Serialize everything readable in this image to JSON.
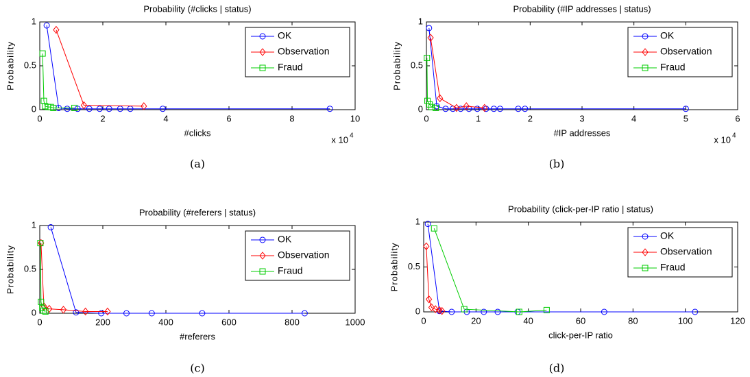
{
  "chart_data": [
    {
      "type": "line",
      "title": "Probability (#clicks | status)",
      "x_label": "#clicks",
      "y_label": "Probability",
      "x_multiplier": "x 10",
      "x_multiplier_exponent": "4",
      "caption": "(a)",
      "xlim": [
        0,
        10
      ],
      "xticks": [
        0,
        2,
        4,
        6,
        8,
        10
      ],
      "ylim": [
        0,
        1
      ],
      "yticks": [
        0,
        0.5,
        1
      ],
      "legend": "upper right",
      "series": [
        {
          "name": "OK",
          "color": "#0000ff",
          "marker": "circle",
          "x": [
            0.22,
            0.6,
            0.87,
            1.2,
            1.57,
            1.9,
            2.2,
            2.55,
            2.87,
            3.9,
            9.2
          ],
          "values": [
            0.96,
            0.02,
            0.01,
            0.01,
            0.01,
            0.01,
            0.01,
            0.01,
            0.01,
            0.01,
            0.01
          ]
        },
        {
          "name": "Observation",
          "color": "#ff0000",
          "marker": "diamond",
          "x": [
            0.52,
            1.4,
            3.3
          ],
          "values": [
            0.91,
            0.05,
            0.04
          ]
        },
        {
          "name": "Fraud",
          "color": "#00cc00",
          "marker": "square",
          "x": [
            0.09,
            0.13,
            0.17,
            0.26,
            0.35,
            0.43,
            1.1
          ],
          "values": [
            0.64,
            0.1,
            0.04,
            0.03,
            0.03,
            0.02,
            0.02
          ]
        }
      ]
    },
    {
      "type": "line",
      "title": "Probability (#IP addresses | status)",
      "x_label": "#IP addresses",
      "y_label": "Probability",
      "x_multiplier": "x 10",
      "x_multiplier_exponent": "4",
      "caption": "(b)",
      "xlim": [
        0,
        6
      ],
      "xticks": [
        0,
        1,
        2,
        3,
        4,
        5,
        6
      ],
      "ylim": [
        0,
        1
      ],
      "yticks": [
        0,
        0.5,
        1
      ],
      "legend": "upper right",
      "series": [
        {
          "name": "OK",
          "color": "#0000ff",
          "marker": "circle",
          "x": [
            0.05,
            0.2,
            0.37,
            0.51,
            0.66,
            0.82,
            0.98,
            1.15,
            1.3,
            1.42,
            1.77,
            1.9,
            5.0
          ],
          "values": [
            0.93,
            0.04,
            0.01,
            0.01,
            0.01,
            0.01,
            0.01,
            0.01,
            0.01,
            0.01,
            0.01,
            0.01,
            0.01
          ]
        },
        {
          "name": "Observation",
          "color": "#ff0000",
          "marker": "diamond",
          "x": [
            0.08,
            0.26,
            0.58,
            0.77,
            1.12
          ],
          "values": [
            0.82,
            0.13,
            0.02,
            0.04,
            0.02
          ]
        },
        {
          "name": "Fraud",
          "color": "#00cc00",
          "marker": "square",
          "x": [
            0.01,
            0.02,
            0.06,
            0.1,
            0.18
          ],
          "values": [
            0.59,
            0.1,
            0.06,
            0.03,
            0.02
          ]
        }
      ]
    },
    {
      "type": "line",
      "title": "Probability (#referers | status)",
      "x_label": "#referers",
      "y_label": "Probability",
      "caption": "(c)",
      "xlim": [
        0,
        1000
      ],
      "xticks": [
        0,
        200,
        400,
        600,
        800,
        1000
      ],
      "ylim": [
        0,
        1
      ],
      "yticks": [
        0,
        0.5,
        1
      ],
      "legend": "upper right",
      "series": [
        {
          "name": "OK",
          "color": "#0000ff",
          "marker": "circle",
          "x": [
            35,
            115,
            195,
            275,
            355,
            515,
            840
          ],
          "values": [
            0.98,
            0.01,
            0,
            0,
            0,
            0,
            0
          ]
        },
        {
          "name": "Observation",
          "color": "#ff0000",
          "marker": "diamond",
          "x": [
            4,
            13,
            30,
            75,
            145,
            215
          ],
          "values": [
            0.8,
            0.08,
            0.05,
            0.04,
            0.02,
            0.02
          ]
        },
        {
          "name": "Fraud",
          "color": "#00cc00",
          "marker": "square",
          "x": [
            2,
            4,
            8,
            12,
            18
          ],
          "values": [
            0.8,
            0.13,
            0.06,
            0.03,
            0.02
          ]
        }
      ]
    },
    {
      "type": "line",
      "title": "Probability (click-per-IP ratio | status)",
      "x_label": "click-per-IP ratio",
      "y_label": "Probability",
      "caption": "(d)",
      "xlim": [
        0,
        120
      ],
      "xticks": [
        0,
        20,
        40,
        60,
        80,
        100,
        120
      ],
      "ylim": [
        0,
        1
      ],
      "yticks": [
        0,
        0.5,
        1
      ],
      "legend": "upper right",
      "series": [
        {
          "name": "OK",
          "color": "#0000ff",
          "marker": "circle",
          "x": [
            1.6,
            6,
            10.7,
            16.5,
            23,
            28.3,
            35.9,
            69,
            103.7
          ],
          "values": [
            0.98,
            0.01,
            0,
            0,
            0,
            0,
            0,
            0,
            0
          ]
        },
        {
          "name": "Observation",
          "color": "#ff0000",
          "marker": "diamond",
          "x": [
            1,
            2,
            3,
            4.5,
            6,
            7
          ],
          "values": [
            0.73,
            0.14,
            0.05,
            0.03,
            0.02,
            0.01
          ]
        },
        {
          "name": "Fraud",
          "color": "#00cc00",
          "marker": "square",
          "x": [
            4,
            15.5,
            36.5,
            47
          ],
          "values": [
            0.93,
            0.03,
            0,
            0.02
          ]
        }
      ]
    }
  ]
}
